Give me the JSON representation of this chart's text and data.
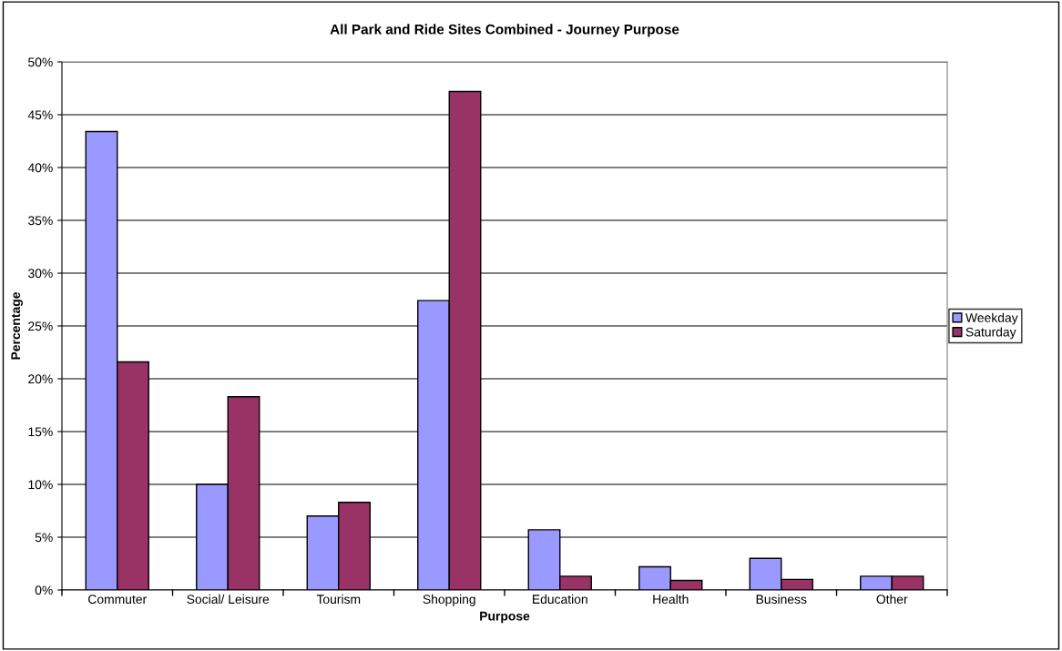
{
  "chart_data": {
    "type": "bar",
    "title": "All Park and Ride Sites Combined - Journey Purpose",
    "xlabel": "Purpose",
    "ylabel": "Percentage",
    "categories": [
      "Commuter",
      "Social/ Leisure",
      "Tourism",
      "Shopping",
      "Education",
      "Health",
      "Business",
      "Other"
    ],
    "series": [
      {
        "name": "Weekday",
        "color": "#9999ff",
        "values": [
          43.4,
          10.0,
          7.0,
          27.4,
          5.7,
          2.2,
          3.0,
          1.3
        ]
      },
      {
        "name": "Saturday",
        "color": "#993366",
        "values": [
          21.6,
          18.3,
          8.3,
          47.2,
          1.3,
          0.9,
          1.0,
          1.3
        ]
      }
    ],
    "ylim": [
      0,
      50
    ],
    "yticks": [
      {
        "value": 0,
        "label": "0%"
      },
      {
        "value": 5,
        "label": "5%"
      },
      {
        "value": 10,
        "label": "10%"
      },
      {
        "value": 15,
        "label": "15%"
      },
      {
        "value": 20,
        "label": "20%"
      },
      {
        "value": 25,
        "label": "25%"
      },
      {
        "value": 30,
        "label": "30%"
      },
      {
        "value": 35,
        "label": "35%"
      },
      {
        "value": 40,
        "label": "40%"
      },
      {
        "value": 45,
        "label": "45%"
      },
      {
        "value": 50,
        "label": "50%"
      }
    ],
    "grid": "y",
    "legend": "right"
  }
}
